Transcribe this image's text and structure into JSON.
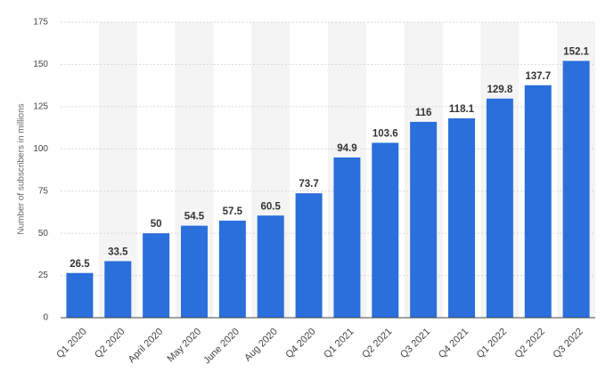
{
  "chart_data": {
    "type": "bar",
    "y_label": "Number of subscribers in millions",
    "categories": [
      "Q1 2020",
      "Q2 2020",
      "April 2020",
      "May 2020",
      "June 2020",
      "Aug 2020",
      "Q4 2020",
      "Q1 2021",
      "Q2 2021",
      "Q3 2021",
      "Q4 2021",
      "Q1 2022",
      "Q2 2022",
      "Q3 2022"
    ],
    "values": [
      26.5,
      33.5,
      50,
      54.5,
      57.5,
      60.5,
      73.7,
      94.9,
      103.6,
      116,
      118.1,
      129.8,
      137.7,
      152.1
    ],
    "color": "#2a6fdb",
    "ylim": [
      0,
      175
    ],
    "yticks": [
      0,
      25,
      50,
      75,
      100,
      125,
      150,
      175
    ],
    "grid": true
  }
}
